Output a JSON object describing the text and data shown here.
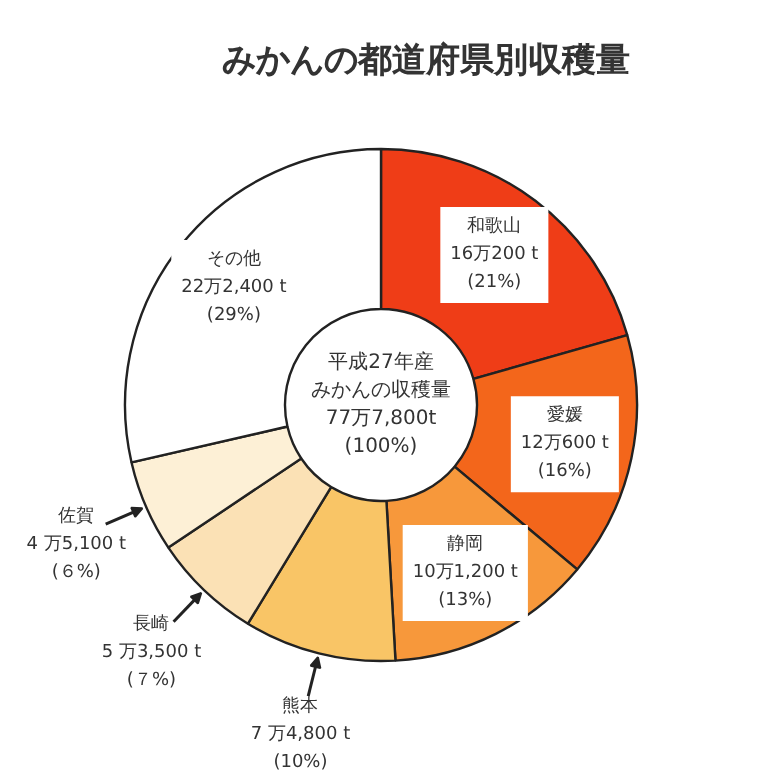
{
  "chart_data": {
    "type": "donut",
    "title": "みかんの都道府県別収穫量",
    "categories": [
      "和歌山",
      "愛媛",
      "静岡",
      "熊本",
      "長崎",
      "佐賀",
      "その他"
    ],
    "values": [
      20.6,
      15.5,
      13.0,
      9.6,
      6.9,
      5.8,
      28.6
    ],
    "colors": [
      "#ef3d17",
      "#f3661b",
      "#f7983b",
      "#f9c566",
      "#fbe1b5",
      "#fdf0d6",
      "#ffffff"
    ],
    "value_labels": [
      "16万200 t\n(21%)",
      "12万600 t\n(16%)",
      "10万1,200 t\n(13%)",
      "7 万4,800 t\n(10%)",
      "5 万3,500 t\n(７%)",
      "4 万5,100 t\n(６%)",
      "22万2,400 t\n(29%)"
    ],
    "annotations": [
      "平成27年産",
      "みかんの収穫量",
      "77万7,800t",
      "(100%)"
    ]
  }
}
